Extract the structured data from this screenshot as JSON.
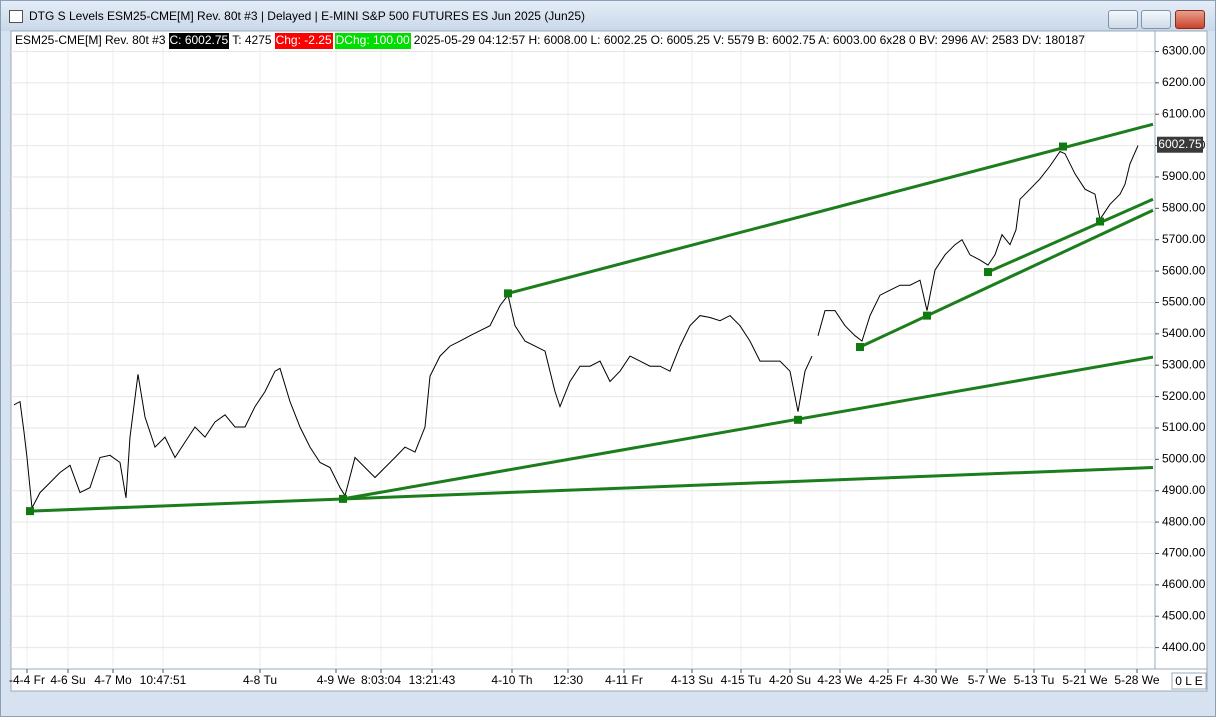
{
  "window": {
    "title": "DTG S Levels ESM25-CME[M]  Rev. 80t #3 | Delayed | E-MINI S&P 500 FUTURES ES Jun 2025 (Jun25)"
  },
  "info": {
    "symbol": "ESM25-CME[M]  Rev. 80t #3",
    "close": "C: 6002.75",
    "ticks": "T: 4275",
    "chg": "Chg: -2.25",
    "dchg": "DChg: 100.00",
    "details": "2025-05-29 04:12:57 H: 6008.00 L: 6002.25 O: 6005.25 V: 5579 B: 6002.75 A: 6003.00 6x28 0 BV: 2996 AV: 2583 DV: 180187"
  },
  "status": "0 L E",
  "chart_data": {
    "type": "line",
    "grid": true,
    "xlim": [
      0,
      1145
    ],
    "ylim": [
      4335,
      6362
    ],
    "xticks": [
      {
        "value": 15,
        "label": "-4-4 Fr"
      },
      {
        "value": 56,
        "label": "4-6 Su"
      },
      {
        "value": 101,
        "label": "4-7 Mo"
      },
      {
        "value": 151,
        "label": "10:47:51"
      },
      {
        "value": 248,
        "label": "4-8 Tu"
      },
      {
        "value": 324,
        "label": "4-9 We"
      },
      {
        "value": 369,
        "label": "8:03:04"
      },
      {
        "value": 420,
        "label": "13:21:43"
      },
      {
        "value": 500,
        "label": "4-10 Th"
      },
      {
        "value": 556,
        "label": "12:30"
      },
      {
        "value": 612,
        "label": "4-11 Fr"
      },
      {
        "value": 680,
        "label": "4-13 Su"
      },
      {
        "value": 729,
        "label": "4-15 Tu"
      },
      {
        "value": 778,
        "label": "4-20 Su"
      },
      {
        "value": 828,
        "label": "4-23 We"
      },
      {
        "value": 876,
        "label": "4-25 Fr"
      },
      {
        "value": 924,
        "label": "4-30 We"
      },
      {
        "value": 975,
        "label": "5-7 We"
      },
      {
        "value": 1022,
        "label": "5-13 Tu"
      },
      {
        "value": 1073,
        "label": "5-21 We"
      },
      {
        "value": 1125,
        "label": "5-28 We"
      }
    ],
    "yticks": [
      {
        "value": 6300,
        "label": "6300.00"
      },
      {
        "value": 6200,
        "label": "6200.00"
      },
      {
        "value": 6100,
        "label": "6100.00"
      },
      {
        "value": 6000,
        "label": "6000.00"
      },
      {
        "value": 5900,
        "label": "5900.00"
      },
      {
        "value": 5800,
        "label": "5800.00"
      },
      {
        "value": 5700,
        "label": "5700.00"
      },
      {
        "value": 5600,
        "label": "5600.00"
      },
      {
        "value": 5500,
        "label": "5500.00"
      },
      {
        "value": 5400,
        "label": "5400.00"
      },
      {
        "value": 5300,
        "label": "5300.00"
      },
      {
        "value": 5200,
        "label": "5200.00"
      },
      {
        "value": 5100,
        "label": "5100.00"
      },
      {
        "value": 5000,
        "label": "5000.00"
      },
      {
        "value": 4900,
        "label": "4900.00"
      },
      {
        "value": 4800,
        "label": "4800.00"
      },
      {
        "value": 4700,
        "label": "4700.00"
      },
      {
        "value": 4600,
        "label": "4600.00"
      },
      {
        "value": 4500,
        "label": "4500.00"
      },
      {
        "value": 4400,
        "label": "4400.00"
      }
    ],
    "series": [
      {
        "color": "#000000",
        "x": [
          2,
          8,
          12,
          15,
          20,
          28,
          38,
          48,
          58,
          68,
          78,
          88,
          98,
          108,
          114,
          118,
          126,
          133,
          143,
          153,
          163,
          173,
          183,
          193,
          203,
          213,
          223,
          233,
          243,
          253,
          263,
          268,
          278,
          288,
          298,
          308,
          318,
          328,
          333,
          343,
          353,
          363,
          373,
          383,
          393,
          403,
          413,
          418,
          428,
          438,
          448,
          458,
          468,
          478,
          488,
          496,
          503,
          513,
          523,
          533,
          543,
          548,
          558,
          568,
          578,
          588,
          598,
          608,
          618,
          628,
          638,
          648,
          658,
          668,
          678,
          688,
          698,
          708,
          718,
          728,
          738,
          748,
          758,
          768,
          778,
          786,
          793,
          800,
          803,
          806,
          813,
          823,
          833,
          843,
          850,
          858,
          868,
          878,
          888,
          898,
          908,
          915,
          923,
          933,
          943,
          950,
          958,
          968,
          976,
          983,
          990,
          998,
          1004,
          1008,
          1018,
          1028,
          1038,
          1048,
          1053,
          1063,
          1073,
          1083,
          1088,
          1098,
          1108,
          1113,
          1118,
          1126
        ],
        "values": [
          5174,
          5184,
          5087,
          5006,
          4845,
          4894,
          4926,
          4958,
          4981,
          4894,
          4910,
          5006,
          5013,
          4990,
          4877,
          5071,
          5271,
          5135,
          5039,
          5071,
          5006,
          5055,
          5103,
          5071,
          5119,
          5142,
          5103,
          5103,
          5168,
          5216,
          5281,
          5290,
          5184,
          5103,
          5039,
          4990,
          4974,
          4910,
          4884,
          5006,
          4974,
          4942,
          4974,
          5006,
          5039,
          5023,
          5103,
          5265,
          5329,
          5361,
          5377,
          5394,
          5410,
          5426,
          5490,
          5523,
          5426,
          5377,
          5361,
          5345,
          5216,
          5168,
          5248,
          5297,
          5297,
          5313,
          5248,
          5281,
          5329,
          5313,
          5297,
          5297,
          5281,
          5361,
          5426,
          5458,
          5452,
          5442,
          5458,
          5426,
          5377,
          5313,
          5313,
          5313,
          5281,
          5152,
          5281,
          5329,
          null,
          5394,
          5474,
          5474,
          5426,
          5394,
          5377,
          5458,
          5523,
          5539,
          5555,
          5555,
          5571,
          5474,
          5603,
          5652,
          5684,
          5700,
          5652,
          5635,
          5619,
          5652,
          5716,
          5684,
          5732,
          5829,
          5861,
          5894,
          5935,
          5981,
          5974,
          5910,
          5861,
          5845,
          5765,
          5813,
          5845,
          5877,
          5942,
          6000
        ]
      }
    ],
    "trendlines": {
      "color": "#1c7d1c",
      "lines": [
        {
          "x": [
            18,
            1141
          ],
          "values": [
            4835,
            4974
          ]
        },
        {
          "x": [
            331,
            1141
          ],
          "values": [
            4874,
            5326
          ]
        },
        {
          "x": [
            496,
            1141
          ],
          "values": [
            5529,
            6068
          ]
        },
        {
          "x": [
            848,
            1141
          ],
          "values": [
            5358,
            5794
          ]
        },
        {
          "x": [
            976,
            1141
          ],
          "values": [
            5597,
            5829
          ]
        }
      ]
    },
    "anchors": {
      "color": "#0f7a0f",
      "x": [
        18,
        331,
        496,
        786,
        848,
        915,
        976,
        1051,
        1088
      ],
      "values": [
        4835,
        4874,
        5529,
        5126,
        5358,
        5458,
        5597,
        5997,
        5758
      ]
    },
    "last_price": 6002.75
  }
}
